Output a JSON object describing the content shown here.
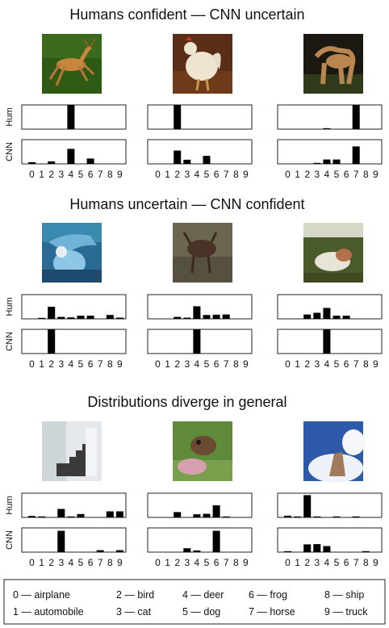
{
  "chart_data": [
    {
      "type": "bar",
      "title": "Humans confident — CNN uncertain",
      "categories": [
        "0",
        "1",
        "2",
        "3",
        "4",
        "5",
        "6",
        "7",
        "8",
        "9"
      ],
      "row_labels": [
        "Hum",
        "CNN"
      ],
      "panels": [
        {
          "image": "deer-thumbnail",
          "series": [
            {
              "values": [
                0,
                0,
                0,
                0,
                1.0,
                0,
                0,
                0,
                0,
                0
              ]
            },
            {
              "values": [
                0.07,
                0,
                0.1,
                0,
                0.62,
                0,
                0.22,
                0,
                0,
                0
              ]
            }
          ]
        },
        {
          "image": "rooster-thumbnail",
          "series": [
            {
              "values": [
                0,
                0,
                1.0,
                0,
                0,
                0,
                0,
                0,
                0,
                0
              ]
            },
            {
              "values": [
                0,
                0,
                0.55,
                0.17,
                0,
                0.33,
                0,
                0,
                0,
                0
              ]
            }
          ]
        },
        {
          "image": "horse-thumbnail",
          "series": [
            {
              "values": [
                0,
                0,
                0,
                0,
                0.03,
                0,
                0,
                1.0,
                0,
                0
              ]
            },
            {
              "values": [
                0,
                0,
                0,
                0.03,
                0.18,
                0.18,
                0,
                0.72,
                0,
                0
              ]
            }
          ]
        }
      ]
    },
    {
      "type": "bar",
      "title": "Humans uncertain — CNN confident",
      "categories": [
        "0",
        "1",
        "2",
        "3",
        "4",
        "5",
        "6",
        "7",
        "8",
        "9"
      ],
      "row_labels": [
        "Hum",
        "CNN"
      ],
      "panels": [
        {
          "image": "bird-thumbnail",
          "series": [
            {
              "values": [
                0,
                0.03,
                0.5,
                0.08,
                0.06,
                0.13,
                0.13,
                0,
                0.16,
                0.05
              ]
            },
            {
              "values": [
                0,
                0,
                1.0,
                0,
                0,
                0,
                0,
                0,
                0,
                0
              ]
            }
          ]
        },
        {
          "image": "deer-thumbnail-2",
          "series": [
            {
              "values": [
                0,
                0,
                0.08,
                0.05,
                0.52,
                0.16,
                0.17,
                0.18,
                0,
                0
              ]
            },
            {
              "values": [
                0,
                0,
                0,
                0,
                1.0,
                0,
                0,
                0,
                0,
                0
              ]
            }
          ]
        },
        {
          "image": "deer-thumbnail-3",
          "series": [
            {
              "values": [
                0,
                0,
                0.18,
                0.25,
                0.45,
                0.13,
                0.13,
                0,
                0,
                0
              ]
            },
            {
              "values": [
                0,
                0,
                0,
                0,
                1.0,
                0,
                0,
                0,
                0,
                0
              ]
            }
          ]
        }
      ]
    },
    {
      "type": "bar",
      "title": "Distributions diverge in general",
      "categories": [
        "0",
        "1",
        "2",
        "3",
        "4",
        "5",
        "6",
        "7",
        "8",
        "9"
      ],
      "row_labels": [
        "Hum",
        "CNN"
      ],
      "panels": [
        {
          "image": "staircase-thumbnail",
          "series": [
            {
              "values": [
                0.06,
                0.03,
                0,
                0.35,
                0.02,
                0.14,
                0,
                0,
                0.25,
                0.25
              ]
            },
            {
              "values": [
                0,
                0,
                0,
                0.88,
                0,
                0,
                0,
                0.08,
                0,
                0.08
              ]
            }
          ]
        },
        {
          "image": "dog-thumbnail",
          "series": [
            {
              "values": [
                0,
                0,
                0.22,
                0,
                0.13,
                0.15,
                0.5,
                0.04,
                0,
                0
              ]
            },
            {
              "values": [
                0,
                0,
                0,
                0.16,
                0.07,
                0,
                0.88,
                0,
                0,
                0
              ]
            }
          ]
        },
        {
          "image": "cat-thumbnail",
          "series": [
            {
              "values": [
                0.07,
                0.02,
                0.92,
                0.04,
                0,
                0.04,
                0,
                0.04,
                0,
                0
              ]
            },
            {
              "values": [
                0.04,
                0,
                0.32,
                0.33,
                0.25,
                0,
                0,
                0,
                0.02,
                0
              ]
            }
          ]
        }
      ]
    }
  ],
  "legend": {
    "entries": [
      "0 — airplane",
      "1 — automobile",
      "2 — bird",
      "3 — cat",
      "4 — deer",
      "5 — dog",
      "6 — frog",
      "7 — horse",
      "8 — ship",
      "9 — truck"
    ]
  },
  "colors": {
    "bar": "#000000",
    "frame": "#222222"
  }
}
